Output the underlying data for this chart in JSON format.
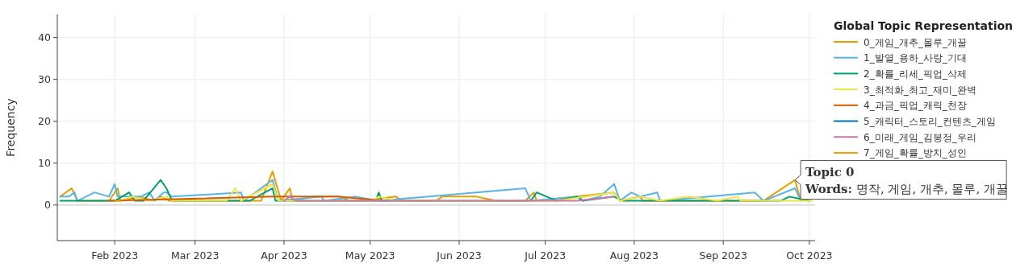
{
  "chart_data": {
    "type": "line",
    "ylabel": "Frequency",
    "legend_title": "Global Topic Representation",
    "legend": "top right",
    "grid": true,
    "marker": "none",
    "line_style": "solid",
    "xlim": [
      "2023-01-12",
      "2023-10-03"
    ],
    "ylim": [
      -8.5,
      45.5
    ],
    "yticks": [
      0,
      10,
      20,
      30,
      40
    ],
    "xticks": [
      {
        "value": "2023-02-01",
        "label": "Feb 2023"
      },
      {
        "value": "2023-03-01",
        "label": "Mar 2023"
      },
      {
        "value": "2023-04-01",
        "label": "Apr 2023"
      },
      {
        "value": "2023-05-01",
        "label": "May 2023"
      },
      {
        "value": "2023-06-01",
        "label": "Jun 2023"
      },
      {
        "value": "2023-07-01",
        "label": "Jul 2023"
      },
      {
        "value": "2023-08-01",
        "label": "Aug 2023"
      },
      {
        "value": "2023-09-01",
        "label": "Sep 2023"
      },
      {
        "value": "2023-10-01",
        "label": "Oct 2023"
      }
    ],
    "series": [
      {
        "name": "0_게임_개추_몰루_개꿀",
        "color": "#e69f00",
        "x": [
          "2023-01-13",
          "2023-01-17",
          "2023-01-19",
          "2023-01-30",
          "2023-02-02",
          "2023-02-03",
          "2023-02-10",
          "2023-02-14",
          "2023-02-17",
          "2023-02-20",
          "2023-03-15",
          "2023-03-24",
          "2023-03-28",
          "2023-03-31",
          "2023-04-03",
          "2023-04-04",
          "2023-04-11",
          "2023-04-20",
          "2023-04-24",
          "2023-04-28",
          "2023-05-10",
          "2023-05-12",
          "2023-05-24",
          "2023-05-26",
          "2023-06-07",
          "2023-06-14",
          "2023-06-24",
          "2023-06-27",
          "2023-06-28",
          "2023-07-25",
          "2023-07-27",
          "2023-08-03",
          "2023-08-04",
          "2023-09-15",
          "2023-09-26",
          "2023-09-28"
        ],
        "values": [
          2,
          4,
          1,
          1,
          4,
          1,
          2,
          1,
          2,
          1,
          1,
          1,
          8,
          1,
          4,
          1,
          2,
          2,
          1,
          1,
          2,
          1,
          1,
          2,
          2,
          1,
          1,
          3,
          1,
          3,
          1,
          2,
          1,
          1,
          6,
          1
        ]
      },
      {
        "name": "1_발열_용하_사랑_기대",
        "color": "#56b4e9",
        "x": [
          "2023-01-13",
          "2023-01-16",
          "2023-01-18",
          "2023-01-19",
          "2023-01-25",
          "2023-01-30",
          "2023-02-01",
          "2023-02-02",
          "2023-02-10",
          "2023-02-13",
          "2023-02-15",
          "2023-02-18",
          "2023-02-19",
          "2023-02-21",
          "2023-03-17",
          "2023-03-18",
          "2023-03-28",
          "2023-03-30",
          "2023-04-14",
          "2023-04-15",
          "2023-04-26",
          "2023-05-04",
          "2023-06-24",
          "2023-06-26",
          "2023-07-13",
          "2023-07-14",
          "2023-07-20",
          "2023-07-25",
          "2023-07-27",
          "2023-07-31",
          "2023-08-03",
          "2023-08-09",
          "2023-08-10",
          "2023-09-12",
          "2023-09-15",
          "2023-09-26",
          "2023-09-28"
        ],
        "values": [
          2,
          2,
          3,
          1,
          3,
          2,
          5,
          2,
          2,
          3,
          1,
          3,
          3,
          2,
          3,
          1,
          6,
          1,
          2,
          1,
          2,
          1,
          4,
          1,
          2,
          1,
          2,
          5,
          1,
          3,
          2,
          3,
          1,
          3,
          1,
          4,
          1
        ]
      },
      {
        "name": "2_확률_리세_픽업_삭제",
        "color": "#009e73",
        "x": [
          "2023-01-13",
          "2023-02-01",
          "2023-02-06",
          "2023-02-08",
          "2023-02-11",
          "2023-02-17",
          "2023-02-19",
          "2023-02-21",
          "2023-03-20",
          "2023-03-28",
          "2023-03-29",
          "2023-05-03",
          "2023-05-04",
          "2023-05-05",
          "2023-06-26",
          "2023-06-28",
          "2023-07-05",
          "2023-07-12",
          "2023-07-14",
          "2023-07-25",
          "2023-07-28",
          "2023-09-21",
          "2023-09-24",
          "2023-10-01"
        ],
        "values": [
          1,
          1,
          3,
          1,
          1,
          6,
          4,
          1,
          1,
          4,
          1,
          1,
          3,
          1,
          1,
          3,
          1,
          2,
          1,
          2,
          1,
          1,
          2,
          1
        ]
      },
      {
        "name": "3_최적화_최고_재미_완벽",
        "color": "#f0e442",
        "x": [
          "2023-02-03",
          "2023-02-07",
          "2023-02-13",
          "2023-02-19",
          "2023-02-21",
          "2023-03-12",
          "2023-03-15",
          "2023-03-17",
          "2023-03-28",
          "2023-03-30",
          "2023-05-02",
          "2023-05-04",
          "2023-05-10",
          "2023-07-05",
          "2023-07-25",
          "2023-07-27",
          "2023-08-03",
          "2023-08-10",
          "2023-08-20",
          "2023-08-30",
          "2023-09-06",
          "2023-09-07",
          "2023-09-30",
          "2023-10-02"
        ],
        "values": [
          1,
          2,
          1,
          2,
          1,
          1,
          4,
          1,
          5,
          1,
          1,
          2,
          1,
          1,
          3,
          1,
          2,
          1,
          2,
          1,
          2,
          1,
          1,
          1
        ]
      },
      {
        "name": "4_과금_픽업_캐릭_천장",
        "color": "#d55e00",
        "x": [
          "2023-01-30",
          "2023-03-28",
          "2023-04-20",
          "2023-05-05"
        ],
        "values": [
          1,
          2,
          2,
          1
        ]
      },
      {
        "name": "5_캐릭터_스토리_컨텐츠_게임",
        "color": "#0072b2"
      },
      {
        "name": "6_미래_게임_김봉정_우리",
        "color": "#cc79a7",
        "x": [
          "2023-04-01",
          "2023-04-03",
          "2023-04-05",
          "2023-07-12",
          "2023-07-25"
        ],
        "values": [
          1,
          2,
          1,
          1,
          2
        ]
      },
      {
        "name": "7_게임_확률_방치_성인",
        "color": "#e69f00",
        "x": [
          "2023-02-01",
          "2023-02-03"
        ],
        "values": [
          1,
          1
        ]
      }
    ],
    "annotations": [
      {
        "text": "Topic 0\nWords: 명작, 게임, 개추, 몰루, 개꿀",
        "x": "2023-09-26",
        "y": 6
      }
    ]
  }
}
